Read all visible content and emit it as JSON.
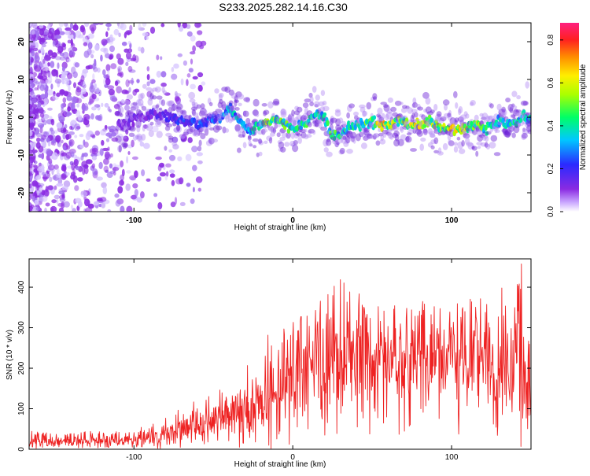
{
  "title": "S233.2025.282.14.16.C30",
  "colors": {
    "snr_line": "#ee2222",
    "spectrogram_scatter": "#8a2be2",
    "axis": "#000000"
  },
  "colorbar": {
    "label": "Normalized spectral amplitude",
    "ticks": [
      "0.0",
      "0.2",
      "0.4",
      "0.6",
      "0.8"
    ],
    "range": [
      0,
      0.88
    ],
    "colormap": "rainbow (purple → blue → cyan → green → yellow → orange → red → magenta)"
  },
  "chart_data": [
    {
      "type": "heatmap",
      "title": "",
      "xlabel": "Height of straight line (km)",
      "ylabel": "Frequency (Hz)",
      "xlim": [
        -166,
        150
      ],
      "ylim": [
        -25,
        25
      ],
      "x_ticks": [
        -100,
        0,
        100
      ],
      "y_ticks": [
        -20,
        -10,
        0,
        10,
        20
      ],
      "colorbar_label": "Normalized spectral amplitude",
      "ridge": {
        "x": [
          -110,
          -90,
          -80,
          -70,
          -60,
          -50,
          -45,
          -40,
          -35,
          -30,
          -25,
          -20,
          -15,
          -10,
          -5,
          0,
          5,
          10,
          15,
          20,
          25,
          30,
          35,
          40,
          45,
          50,
          55,
          60,
          65,
          70,
          75,
          80,
          85,
          90,
          95,
          100,
          105,
          110,
          115,
          120,
          125,
          130,
          135,
          140,
          145
        ],
        "freq": [
          -2,
          1,
          0,
          -1,
          -2,
          -1,
          0,
          3,
          0,
          -3,
          -3,
          -2,
          -1,
          -1,
          -2,
          -3,
          -3,
          -1,
          1,
          0,
          -5,
          -4,
          -3,
          -2,
          -2,
          -1,
          -2,
          -2,
          -1,
          -1,
          -2,
          -2,
          -1,
          -2,
          -3,
          -3,
          -3,
          -3,
          -2,
          -3,
          -2,
          -1,
          -2,
          -1,
          0
        ],
        "amplitude": [
          0.15,
          0.2,
          0.25,
          0.3,
          0.3,
          0.35,
          0.4,
          0.5,
          0.45,
          0.4,
          0.55,
          0.6,
          0.7,
          0.75,
          0.65,
          0.5,
          0.55,
          0.6,
          0.5,
          0.55,
          0.6,
          0.55,
          0.6,
          0.55,
          0.6,
          0.65,
          0.85,
          0.8,
          0.7,
          0.65,
          0.75,
          0.8,
          0.75,
          0.7,
          0.8,
          0.85,
          0.8,
          0.75,
          0.7,
          0.6,
          0.5,
          0.45,
          0.5,
          0.55,
          0.5
        ]
      }
    },
    {
      "type": "line",
      "title": "",
      "xlabel": "Height of straight line (km)",
      "ylabel": "SNR (10 * v/v)",
      "xlim": [
        -166,
        150
      ],
      "ylim": [
        0,
        470
      ],
      "x_ticks": [
        -100,
        0,
        100
      ],
      "y_ticks": [
        0,
        100,
        200,
        300,
        400
      ],
      "series": [
        {
          "x": [
            -166,
            -150,
            -130,
            -110,
            -100,
            -90,
            -80,
            -75,
            -70,
            -65,
            -60,
            -55,
            -50,
            -45,
            -40,
            -35,
            -30,
            -25,
            -20,
            -15,
            -10,
            -5,
            0,
            5,
            10,
            15,
            20,
            25,
            30,
            40,
            50,
            60,
            70,
            80,
            90,
            100,
            110,
            120,
            130,
            135,
            140,
            145,
            150
          ],
          "mean": [
            20,
            20,
            22,
            22,
            25,
            30,
            40,
            45,
            50,
            55,
            50,
            60,
            70,
            80,
            85,
            90,
            100,
            110,
            120,
            130,
            150,
            170,
            200,
            210,
            220,
            230,
            230,
            240,
            230,
            230,
            230,
            225,
            230,
            230,
            230,
            240,
            220,
            230,
            220,
            230,
            220,
            200,
            180
          ],
          "peak": [
            45,
            40,
            45,
            45,
            40,
            60,
            80,
            90,
            110,
            110,
            100,
            120,
            140,
            150,
            140,
            160,
            190,
            200,
            240,
            290,
            300,
            310,
            360,
            350,
            340,
            360,
            390,
            400,
            410,
            400,
            380,
            360,
            380,
            360,
            370,
            350,
            360,
            380,
            400,
            440,
            470,
            460,
            300
          ]
        }
      ]
    }
  ]
}
